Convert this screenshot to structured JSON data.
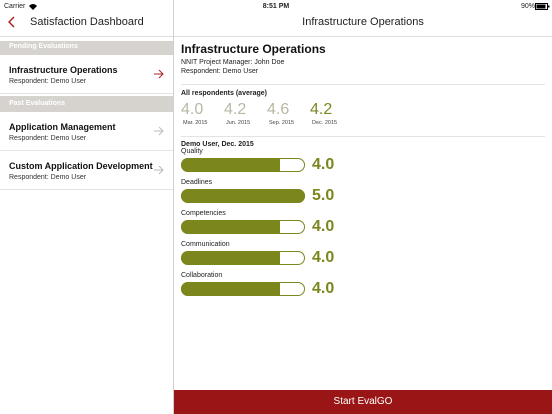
{
  "status_bar": {
    "carrier": "Carrier",
    "time": "8:51 PM",
    "battery": "90%"
  },
  "sidebar": {
    "title": "Satisfaction Dashboard",
    "sections": [
      {
        "header": "Pending Evaluations",
        "items": [
          {
            "title": "Infrastructure Operations",
            "subtitle": "Respondent: Demo User"
          }
        ]
      },
      {
        "header": "Past Evaluations",
        "items": [
          {
            "title": "Application Management",
            "subtitle": "Respondent: Demo User"
          },
          {
            "title": "Custom Application Development",
            "subtitle": "Respondent: Demo User"
          }
        ]
      }
    ]
  },
  "detail": {
    "nav_title": "Infrastructure Operations",
    "title": "Infrastructure Operations",
    "manager": "NNIT Project Manager: John Doe",
    "respondent": "Respondent: Demo User",
    "averages": {
      "title": "All respondents (average)",
      "scores": [
        "4.0",
        "4.2",
        "4.6",
        "4.2"
      ],
      "dates": [
        "Mar. 2015",
        "Jun. 2015",
        "Sep. 2015",
        "Dec. 2015"
      ]
    },
    "ratings": {
      "title": "Demo User, Dec. 2015",
      "categories": [
        "Quality",
        "Deadlines",
        "Competencies",
        "Communication",
        "Collaboration"
      ],
      "values": [
        4,
        5,
        4,
        4,
        4
      ],
      "value_labels": [
        "4.0",
        "5.0",
        "4.0",
        "4.0",
        "4.0"
      ],
      "xlim": [
        0,
        5
      ],
      "color": "#7b861c"
    },
    "button": "Start EvalGO"
  }
}
